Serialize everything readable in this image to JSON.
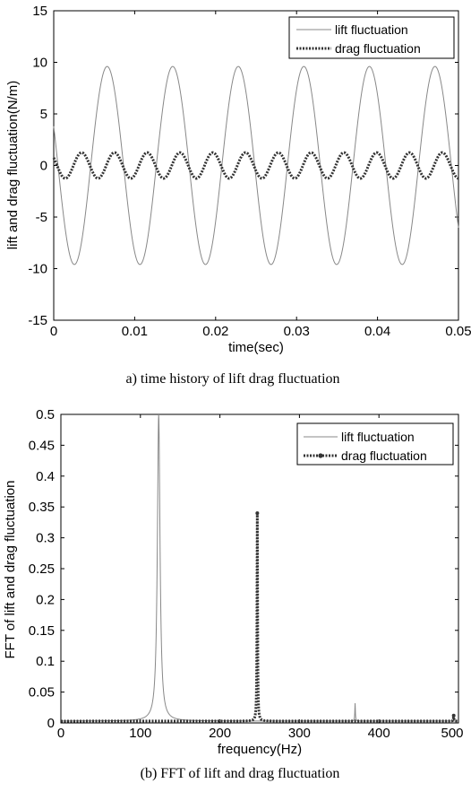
{
  "chart_data": [
    {
      "type": "line",
      "caption": "a)  time  history  of  lift  drag  fluctuation",
      "xlabel": "time(sec)",
      "ylabel": "lift and drag fluctuation(N/m)",
      "xlim": [
        0,
        0.05
      ],
      "ylim": [
        -15,
        15
      ],
      "xticks": [
        0,
        0.01,
        0.02,
        0.03,
        0.04,
        0.05
      ],
      "xtick_labels": [
        "0",
        "0.01",
        "0.02",
        "0.03",
        "0.04",
        "0.05"
      ],
      "yticks": [
        -15,
        -10,
        -5,
        0,
        5,
        10,
        15
      ],
      "ytick_labels": [
        "-15",
        "-10",
        "-5",
        "0",
        "5",
        "10",
        "15"
      ],
      "legend_position": "top-right",
      "series": [
        {
          "name": "lift fluctuation",
          "style": "thin-solid",
          "color": "#888888",
          "waveform": {
            "amplitude": 9.6,
            "period": 0.0081,
            "first_peak_t": 0.0066,
            "t_start": 0,
            "t_end": 0.05
          }
        },
        {
          "name": "drag fluctuation",
          "style": "dotted",
          "color": "#333333",
          "waveform": {
            "amplitude": 1.25,
            "period": 0.00405,
            "first_peak_t": 0.00345,
            "t_start": 0,
            "t_end": 0.05
          }
        }
      ]
    },
    {
      "type": "line",
      "caption": "(b)  FFT  of  lift  and  drag  fluctuation",
      "xlabel": "frequency(Hz)",
      "ylabel": "FFT of lift and drag fluctuation",
      "xlim": [
        0,
        500
      ],
      "ylim": [
        0,
        0.5
      ],
      "xticks": [
        0,
        100,
        200,
        300,
        400,
        500
      ],
      "xtick_labels": [
        "0",
        "100",
        "200",
        "300",
        "400",
        "500"
      ],
      "yticks": [
        0,
        0.05,
        0.1,
        0.15,
        0.2,
        0.25,
        0.3,
        0.35,
        0.4,
        0.45,
        0.5
      ],
      "ytick_labels": [
        "0",
        "0.05",
        "0.1",
        "0.15",
        "0.2",
        "0.25",
        "0.3",
        "0.35",
        "0.4",
        "0.45",
        "0.5"
      ],
      "legend_position": "top-right",
      "series": [
        {
          "name": "lift fluctuation",
          "style": "thin-solid",
          "color": "#888888",
          "baseline": 0.003,
          "peaks": [
            {
              "freq": 123,
              "height": 0.5,
              "width": 4
            },
            {
              "freq": 370,
              "height": 0.032,
              "width": 0.8
            }
          ]
        },
        {
          "name": "drag fluctuation",
          "style": "dotted-with-markers",
          "color": "#333333",
          "baseline": 0.003,
          "peaks": [
            {
              "freq": 247,
              "height": 0.34,
              "width": 0.9
            },
            {
              "freq": 494,
              "height": 0.012,
              "width": 0.8
            }
          ]
        }
      ]
    }
  ]
}
